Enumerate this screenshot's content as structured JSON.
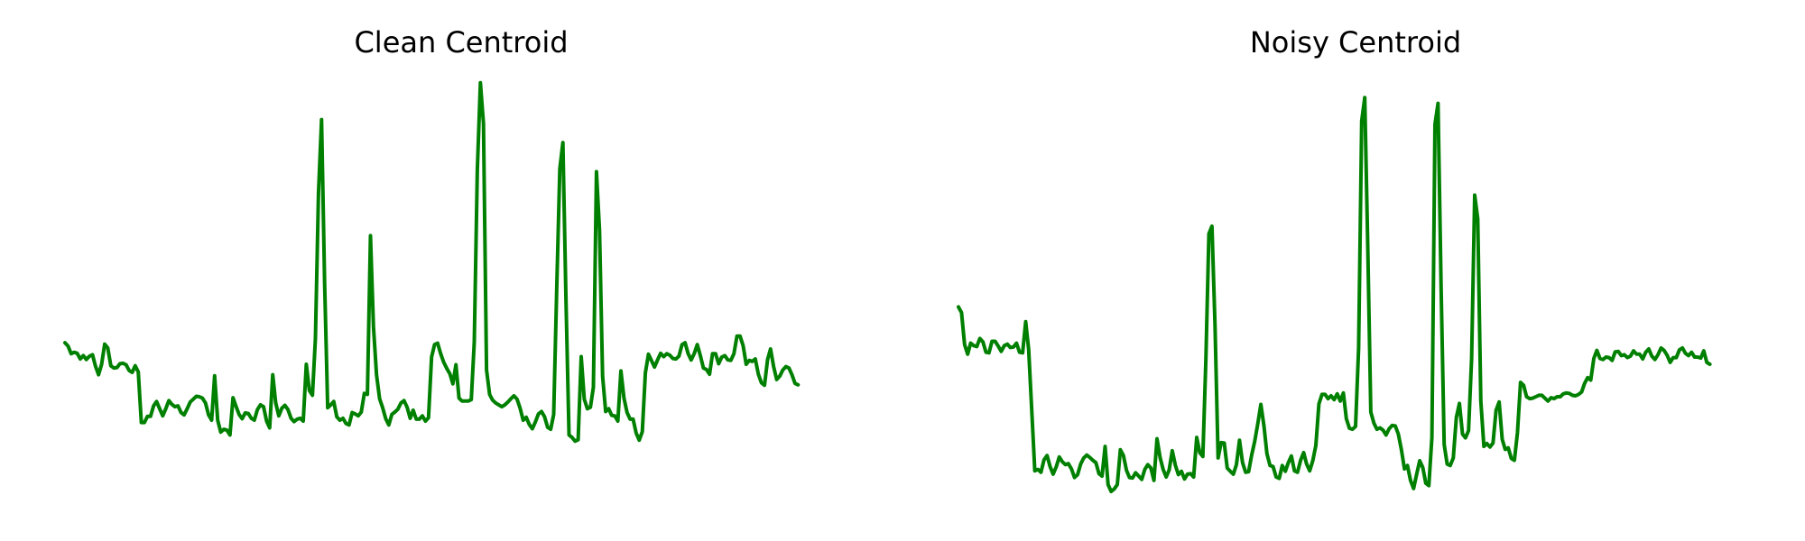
{
  "colors": {
    "line": "#008000",
    "background": "#ffffff"
  },
  "chart_data": [
    {
      "type": "line",
      "title": "Clean Centroid",
      "xlabel": "",
      "ylabel": "",
      "axes_visible": false,
      "grid": false,
      "xlim": [
        0,
        260
      ],
      "ylim": [
        0,
        1
      ],
      "series": [
        {
          "values": [
            0.396,
            0.389,
            0.373,
            0.376,
            0.374,
            0.362,
            0.369,
            0.361,
            0.368,
            0.371,
            0.347,
            0.329,
            0.351,
            0.393,
            0.385,
            0.348,
            0.343,
            0.344,
            0.352,
            0.353,
            0.35,
            0.338,
            0.334,
            0.348,
            0.335,
            0.229,
            0.229,
            0.242,
            0.242,
            0.264,
            0.273,
            0.258,
            0.243,
            0.258,
            0.275,
            0.267,
            0.262,
            0.264,
            0.25,
            0.245,
            0.258,
            0.272,
            0.278,
            0.284,
            0.283,
            0.28,
            0.27,
            0.245,
            0.234,
            0.327,
            0.234,
            0.209,
            0.215,
            0.213,
            0.203,
            0.281,
            0.263,
            0.246,
            0.237,
            0.249,
            0.248,
            0.238,
            0.234,
            0.256,
            0.266,
            0.262,
            0.232,
            0.218,
            0.329,
            0.27,
            0.243,
            0.259,
            0.265,
            0.256,
            0.238,
            0.231,
            0.236,
            0.238,
            0.232,
            0.351,
            0.296,
            0.286,
            0.405,
            0.709,
            0.863,
            0.52,
            0.26,
            0.266,
            0.273,
            0.241,
            0.234,
            0.238,
            0.227,
            0.224,
            0.25,
            0.247,
            0.243,
            0.251,
            0.29,
            0.288,
            0.62,
            0.43,
            0.329,
            0.279,
            0.26,
            0.237,
            0.224,
            0.246,
            0.251,
            0.257,
            0.27,
            0.275,
            0.261,
            0.238,
            0.255,
            0.236,
            0.236,
            0.243,
            0.232,
            0.239,
            0.366,
            0.392,
            0.395,
            0.373,
            0.355,
            0.342,
            0.331,
            0.31,
            0.35,
            0.28,
            0.274,
            0.274,
            0.274,
            0.277,
            0.397,
            0.758,
            0.94,
            0.855,
            0.339,
            0.288,
            0.276,
            0.27,
            0.266,
            0.262,
            0.266,
            0.272,
            0.279,
            0.285,
            0.278,
            0.259,
            0.234,
            0.24,
            0.225,
            0.216,
            0.23,
            0.247,
            0.252,
            0.241,
            0.219,
            0.215,
            0.246,
            0.511,
            0.76,
            0.815,
            0.488,
            0.203,
            0.198,
            0.19,
            0.193,
            0.367,
            0.278,
            0.258,
            0.261,
            0.303,
            0.754,
            0.631,
            0.326,
            0.252,
            0.258,
            0.244,
            0.243,
            0.232,
            0.337,
            0.28,
            0.25,
            0.236,
            0.236,
            0.207,
            0.192,
            0.21,
            0.333,
            0.372,
            0.359,
            0.345,
            0.36,
            0.374,
            0.367,
            0.373,
            0.37,
            0.363,
            0.362,
            0.368,
            0.392,
            0.396,
            0.373,
            0.36,
            0.373,
            0.392,
            0.369,
            0.343,
            0.34,
            0.33,
            0.373,
            0.373,
            0.352,
            0.366,
            0.369,
            0.36,
            0.359,
            0.373,
            0.41,
            0.41,
            0.39,
            0.351,
            0.359,
            0.357,
            0.362,
            0.33,
            0.312,
            0.307,
            0.361,
            0.383,
            0.346,
            0.319,
            0.326,
            0.339,
            0.346,
            0.343,
            0.329,
            0.311,
            0.308
          ]
        }
      ]
    },
    {
      "type": "line",
      "title": "Noisy Centroid",
      "xlabel": "",
      "ylabel": "",
      "axes_visible": false,
      "grid": false,
      "xlim": [
        0,
        260
      ],
      "ylim": [
        0,
        1
      ],
      "series": [
        {
          "values": [
            0.471,
            0.459,
            0.392,
            0.372,
            0.395,
            0.39,
            0.388,
            0.405,
            0.398,
            0.376,
            0.375,
            0.399,
            0.399,
            0.389,
            0.378,
            0.39,
            0.393,
            0.386,
            0.387,
            0.395,
            0.376,
            0.375,
            0.44,
            0.382,
            0.255,
            0.128,
            0.131,
            0.125,
            0.151,
            0.16,
            0.137,
            0.121,
            0.136,
            0.157,
            0.147,
            0.141,
            0.143,
            0.132,
            0.114,
            0.12,
            0.142,
            0.155,
            0.161,
            0.156,
            0.15,
            0.145,
            0.122,
            0.117,
            0.179,
            0.099,
            0.085,
            0.09,
            0.099,
            0.172,
            0.16,
            0.129,
            0.114,
            0.113,
            0.124,
            0.117,
            0.11,
            0.131,
            0.141,
            0.134,
            0.108,
            0.195,
            0.156,
            0.131,
            0.115,
            0.13,
            0.17,
            0.14,
            0.12,
            0.127,
            0.111,
            0.121,
            0.122,
            0.115,
            0.198,
            0.166,
            0.158,
            0.364,
            0.624,
            0.64,
            0.431,
            0.155,
            0.187,
            0.186,
            0.134,
            0.127,
            0.121,
            0.141,
            0.192,
            0.145,
            0.125,
            0.126,
            0.161,
            0.19,
            0.227,
            0.267,
            0.222,
            0.164,
            0.139,
            0.137,
            0.115,
            0.112,
            0.139,
            0.127,
            0.145,
            0.159,
            0.128,
            0.125,
            0.15,
            0.166,
            0.142,
            0.128,
            0.149,
            0.181,
            0.268,
            0.288,
            0.288,
            0.279,
            0.285,
            0.277,
            0.289,
            0.274,
            0.291,
            0.237,
            0.217,
            0.215,
            0.221,
            0.385,
            0.86,
            0.909,
            0.6,
            0.251,
            0.228,
            0.215,
            0.218,
            0.213,
            0.203,
            0.216,
            0.223,
            0.222,
            0.205,
            0.172,
            0.132,
            0.139,
            0.108,
            0.091,
            0.121,
            0.149,
            0.135,
            0.102,
            0.097,
            0.198,
            0.853,
            0.897,
            0.512,
            0.183,
            0.142,
            0.139,
            0.155,
            0.24,
            0.269,
            0.205,
            0.197,
            0.212,
            0.363,
            0.705,
            0.655,
            0.274,
            0.179,
            0.185,
            0.178,
            0.186,
            0.255,
            0.272,
            0.194,
            0.173,
            0.176,
            0.154,
            0.15,
            0.208,
            0.313,
            0.307,
            0.283,
            0.279,
            0.28,
            0.283,
            0.286,
            0.286,
            0.28,
            0.274,
            0.281,
            0.279,
            0.283,
            0.283,
            0.289,
            0.291,
            0.29,
            0.286,
            0.285,
            0.288,
            0.293,
            0.311,
            0.323,
            0.318,
            0.363,
            0.38,
            0.363,
            0.361,
            0.366,
            0.365,
            0.359,
            0.377,
            0.378,
            0.369,
            0.371,
            0.365,
            0.368,
            0.379,
            0.372,
            0.372,
            0.362,
            0.376,
            0.383,
            0.368,
            0.361,
            0.371,
            0.385,
            0.38,
            0.37,
            0.355,
            0.365,
            0.365,
            0.381,
            0.385,
            0.374,
            0.369,
            0.376,
            0.366,
            0.366,
            0.364,
            0.379,
            0.355,
            0.351
          ]
        }
      ]
    }
  ]
}
